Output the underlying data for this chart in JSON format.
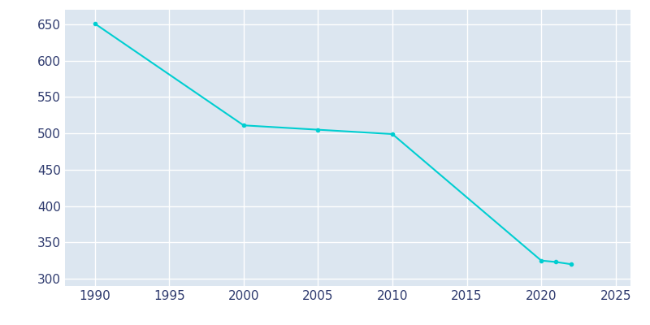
{
  "years": [
    1990,
    2000,
    2005,
    2010,
    2020,
    2021,
    2022
  ],
  "population": [
    651,
    511,
    505,
    499,
    325,
    323,
    320
  ],
  "line_color": "#00CED1",
  "marker_color": "#00CED1",
  "plot_background_color": "#dce6f0",
  "figure_background_color": "#ffffff",
  "grid_color": "#ffffff",
  "text_color": "#2e3a6e",
  "xlim": [
    1988,
    2026
  ],
  "ylim": [
    290,
    670
  ],
  "xticks": [
    1990,
    1995,
    2000,
    2005,
    2010,
    2015,
    2020,
    2025
  ],
  "yticks": [
    300,
    350,
    400,
    450,
    500,
    550,
    600,
    650
  ]
}
